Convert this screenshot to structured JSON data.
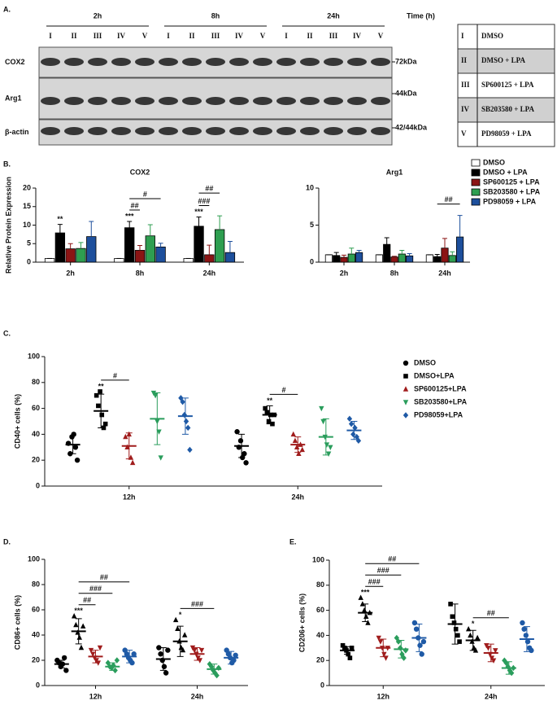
{
  "panel_a": {
    "label": "A.",
    "time_label": "Time (h)",
    "time_groups": [
      "2h",
      "8h",
      "24h"
    ],
    "lanes": [
      "I",
      "II",
      "III",
      "IV",
      "V"
    ],
    "bands": [
      {
        "name": "COX2",
        "size": "72kDa"
      },
      {
        "name": "Arg1",
        "size": "44kDa"
      },
      {
        "name": "β-actin",
        "size": "42/44kDa"
      }
    ],
    "legend_table": [
      [
        "I",
        "DMSO"
      ],
      [
        "II",
        "DMSO + LPA"
      ],
      [
        "III",
        "SP600125 + LPA"
      ],
      [
        "IV",
        "SB203580 + LPA"
      ],
      [
        "V",
        "PD98059 + LPA"
      ]
    ]
  },
  "chart_data": [
    {
      "type": "bar",
      "panel": "B.",
      "title": "COX2",
      "ylabel": "Relative Protein Expression",
      "categories": [
        "2h",
        "8h",
        "24h"
      ],
      "ylim": [
        0,
        20
      ],
      "yticks": [
        0,
        5,
        10,
        15,
        20
      ],
      "series": [
        {
          "name": "DMSO",
          "color": "#ffffff",
          "values": [
            1,
            1,
            1
          ],
          "errors": [
            0,
            0,
            0
          ]
        },
        {
          "name": "DMSO + LPA",
          "color": "#000000",
          "values": [
            7.9,
            9.3,
            9.7
          ],
          "errors": [
            2.3,
            1.7,
            2.5
          ]
        },
        {
          "name": "SP600125 + LPA",
          "color": "#8b1414",
          "values": [
            3.6,
            3.2,
            2.0
          ],
          "errors": [
            1.4,
            1.3,
            2.6
          ]
        },
        {
          "name": "SB203580 + LPA",
          "color": "#2e9e50",
          "values": [
            3.7,
            7.1,
            8.8
          ],
          "errors": [
            1.6,
            3.0,
            3.7
          ]
        },
        {
          "name": "PD98059 + LPA",
          "color": "#1d4f9c",
          "values": [
            6.9,
            4.1,
            2.6
          ],
          "errors": [
            4.1,
            1.0,
            3.0
          ]
        }
      ],
      "annotations": [
        {
          "text": "**",
          "category": 0,
          "series": 1
        },
        {
          "text": "***",
          "category": 1,
          "series": 1
        },
        {
          "text": "***",
          "category": 2,
          "series": 1
        }
      ],
      "brackets": [
        {
          "text": "##",
          "category": 1,
          "from": 1,
          "to": 2,
          "color": "#8b1414"
        },
        {
          "text": "#",
          "category": 1,
          "from": 1,
          "to": 4,
          "color": "#1d4f9c"
        },
        {
          "text": "###",
          "category": 2,
          "from": 1,
          "to": 2,
          "color": "#8b1414"
        },
        {
          "text": "##",
          "category": 2,
          "from": 1,
          "to": 3,
          "color": "#8b1414"
        }
      ]
    },
    {
      "type": "bar",
      "title": "Arg1",
      "categories": [
        "2h",
        "8h",
        "24h"
      ],
      "ylim": [
        0,
        10
      ],
      "yticks": [
        0,
        5,
        10
      ],
      "legend": "top-right",
      "series": [
        {
          "name": "DMSO",
          "color": "#ffffff",
          "values": [
            1,
            1,
            1
          ],
          "errors": [
            0,
            0,
            0
          ]
        },
        {
          "name": "DMSO + LPA",
          "color": "#000000",
          "values": [
            0.9,
            2.4,
            0.75
          ],
          "errors": [
            0.4,
            0.9,
            0.3
          ]
        },
        {
          "name": "SP600125 + LPA",
          "color": "#8b1414",
          "values": [
            0.65,
            0.7,
            1.9
          ],
          "errors": [
            0.3,
            0.1,
            1.3
          ]
        },
        {
          "name": "SB203580 + LPA",
          "color": "#2e9e50",
          "values": [
            1.1,
            1.1,
            0.9
          ],
          "errors": [
            0.8,
            0.5,
            0.5
          ]
        },
        {
          "name": "PD98059 + LPA",
          "color": "#1d4f9c",
          "values": [
            1.3,
            0.85,
            3.4
          ],
          "errors": [
            0.3,
            0.3,
            2.9
          ]
        }
      ],
      "brackets": [
        {
          "text": "##",
          "category": 2,
          "from": 1,
          "to": 4,
          "color": "#1d4f9c"
        }
      ]
    },
    {
      "type": "dotplot",
      "panel": "C.",
      "ylabel": "CD40+ cells (%)",
      "categories": [
        "12h",
        "24h"
      ],
      "ylim": [
        0,
        100
      ],
      "yticks": [
        0,
        20,
        40,
        60,
        80,
        100
      ],
      "legend": "right",
      "series": [
        {
          "name": "DMSO",
          "color": "#000000",
          "marker": "circle",
          "values": [
            [
              33,
              25,
              38,
              40,
              30,
              20
            ],
            [
              42,
              30,
              35,
              22,
              25,
              18
            ]
          ],
          "means": [
            32,
            31
          ],
          "errors": [
            7,
            9
          ]
        },
        {
          "name": "DMSO+LPA",
          "color": "#000000",
          "marker": "square",
          "values": [
            [
              70,
              62,
              73,
              55,
              45,
              48
            ],
            [
              60,
              57,
              50,
              55,
              48,
              55
            ]
          ],
          "means": [
            58,
            55
          ],
          "errors": [
            13,
            7
          ]
        },
        {
          "name": "SP600125+LPA",
          "color": "#a01c1c",
          "marker": "triangle-up",
          "values": [
            [
              38,
              30,
              40,
              22,
              18
            ],
            [
              40,
              35,
              30,
              25,
              32,
              28
            ]
          ],
          "means": [
            31,
            32
          ],
          "errors": [
            10,
            6
          ]
        },
        {
          "name": "SB203580+LPA",
          "color": "#2a9d5c",
          "marker": "triangle-down",
          "values": [
            [
              72,
              70,
              50,
              42,
              22
            ],
            [
              60,
              50,
              38,
              32,
              25,
              30
            ]
          ],
          "means": [
            52,
            38
          ],
          "errors": [
            20,
            14
          ]
        },
        {
          "name": "PD98059+LPA",
          "color": "#1f5aa6",
          "marker": "diamond",
          "values": [
            [
              68,
              65,
              55,
              50,
              45,
              28
            ],
            [
              52,
              48,
              40,
              45,
              38,
              35
            ]
          ],
          "means": [
            54,
            43
          ],
          "errors": [
            14,
            7
          ]
        }
      ],
      "annotations": [
        {
          "text": "**",
          "category": 0,
          "series": 1
        },
        {
          "text": "**",
          "category": 1,
          "series": 1
        }
      ],
      "brackets": [
        {
          "text": "#",
          "category": 0,
          "from": 1,
          "to": 2,
          "color": "#a01c1c"
        },
        {
          "text": "#",
          "category": 1,
          "from": 1,
          "to": 2,
          "color": "#a01c1c"
        }
      ]
    },
    {
      "type": "dotplot",
      "panel": "D.",
      "ylabel": "CD86+ cells (%)",
      "categories": [
        "12h",
        "24h"
      ],
      "ylim": [
        0,
        100
      ],
      "yticks": [
        0,
        20,
        40,
        60,
        80,
        100
      ],
      "series": [
        {
          "name": "DMSO",
          "color": "#000000",
          "marker": "circle",
          "values": [
            [
              20,
              18,
              15,
              17,
              22,
              12
            ],
            [
              30,
              25,
              20,
              15,
              10,
              28
            ]
          ],
          "means": [
            17,
            21
          ],
          "errors": [
            3,
            9
          ]
        },
        {
          "name": "DMSO+LPA",
          "color": "#000000",
          "marker": "triangle-up",
          "values": [
            [
              55,
              48,
              42,
              38,
              30,
              47
            ],
            [
              52,
              45,
              35,
              30,
              28,
              40
            ]
          ],
          "means": [
            43,
            35
          ],
          "errors": [
            10,
            12
          ]
        },
        {
          "name": "SP600125+LPA",
          "color": "#a01c1c",
          "marker": "triangle-down",
          "values": [
            [
              28,
              25,
              22,
              20,
              18,
              30
            ],
            [
              30,
              28,
              25,
              22,
              20,
              28
            ]
          ],
          "means": [
            23,
            25
          ],
          "errors": [
            5,
            5
          ]
        },
        {
          "name": "SB203580+LPA",
          "color": "#2a9d5c",
          "marker": "diamond",
          "values": [
            [
              18,
              15,
              14,
              16,
              12,
              20
            ],
            [
              17,
              15,
              12,
              10,
              8,
              14
            ]
          ],
          "means": [
            15,
            13
          ],
          "errors": [
            3,
            4
          ]
        },
        {
          "name": "PD98059+LPA",
          "color": "#1f5aa6",
          "marker": "circle",
          "values": [
            [
              28,
              25,
              22,
              20,
              18,
              25
            ],
            [
              28,
              25,
              22,
              18,
              20,
              24
            ]
          ],
          "means": [
            23,
            22
          ],
          "errors": [
            5,
            5
          ]
        }
      ],
      "annotations": [
        {
          "text": "***",
          "category": 0,
          "series": 1
        },
        {
          "text": "*",
          "category": 1,
          "series": 1
        }
      ],
      "brackets": [
        {
          "text": "##",
          "category": 0,
          "from": 1,
          "to": 2,
          "color": "#a01c1c"
        },
        {
          "text": "###",
          "category": 0,
          "from": 1,
          "to": 3,
          "color": "#2a9d5c"
        },
        {
          "text": "##",
          "category": 0,
          "from": 1,
          "to": 4,
          "color": "#1f5aa6"
        },
        {
          "text": "###",
          "category": 1,
          "from": 1,
          "to": 3,
          "color": "#2a9d5c"
        }
      ]
    },
    {
      "type": "dotplot",
      "panel": "E.",
      "ylabel": "CD206+ cells (%)",
      "categories": [
        "12h",
        "24h"
      ],
      "ylim": [
        0,
        100
      ],
      "yticks": [
        0,
        20,
        40,
        60,
        80,
        100
      ],
      "series": [
        {
          "name": "DMSO",
          "color": "#000000",
          "marker": "square",
          "values": [
            [
              32,
              30,
              28,
              25,
              22,
              30
            ],
            [
              65,
              55,
              50,
              45,
              40,
              35
            ]
          ],
          "means": [
            28,
            49
          ],
          "errors": [
            3,
            16
          ]
        },
        {
          "name": "DMSO+LPA",
          "color": "#000000",
          "marker": "triangle-up",
          "values": [
            [
              70,
              65,
              60,
              55,
              50,
              58
            ],
            [
              45,
              40,
              35,
              30,
              28,
              38
            ]
          ],
          "means": [
            58,
            36
          ],
          "errors": [
            7,
            8
          ]
        },
        {
          "name": "SP600125+LPA",
          "color": "#a01c1c",
          "marker": "triangle-down",
          "values": [
            [
              38,
              35,
              30,
              25,
              22,
              30
            ],
            [
              32,
              30,
              25,
              22,
              20,
              28
            ]
          ],
          "means": [
            30,
            26
          ],
          "errors": [
            7,
            7
          ]
        },
        {
          "name": "SB203580+LPA",
          "color": "#2a9d5c",
          "marker": "diamond",
          "values": [
            [
              38,
              35,
              30,
              25,
              22,
              28
            ],
            [
              20,
              18,
              15,
              12,
              10,
              14
            ]
          ],
          "means": [
            29,
            14
          ],
          "errors": [
            7,
            5
          ]
        },
        {
          "name": "PD98059+LPA",
          "color": "#1f5aa6",
          "marker": "circle",
          "values": [
            [
              50,
              45,
              38,
              32,
              25,
              35
            ],
            [
              50,
              45,
              40,
              35,
              30,
              28
            ]
          ],
          "means": [
            38,
            37
          ],
          "errors": [
            11,
            10
          ]
        }
      ],
      "annotations": [
        {
          "text": "***",
          "category": 0,
          "series": 1
        },
        {
          "text": "*",
          "category": 1,
          "series": 1
        }
      ],
      "brackets": [
        {
          "text": "###",
          "category": 0,
          "from": 1,
          "to": 2,
          "color": "#a01c1c"
        },
        {
          "text": "###",
          "category": 0,
          "from": 1,
          "to": 3,
          "color": "#2a9d5c"
        },
        {
          "text": "##",
          "category": 0,
          "from": 1,
          "to": 4,
          "color": "#1f5aa6"
        },
        {
          "text": "##",
          "category": 1,
          "from": 1,
          "to": 3,
          "color": "#2a9d5c"
        }
      ]
    }
  ]
}
